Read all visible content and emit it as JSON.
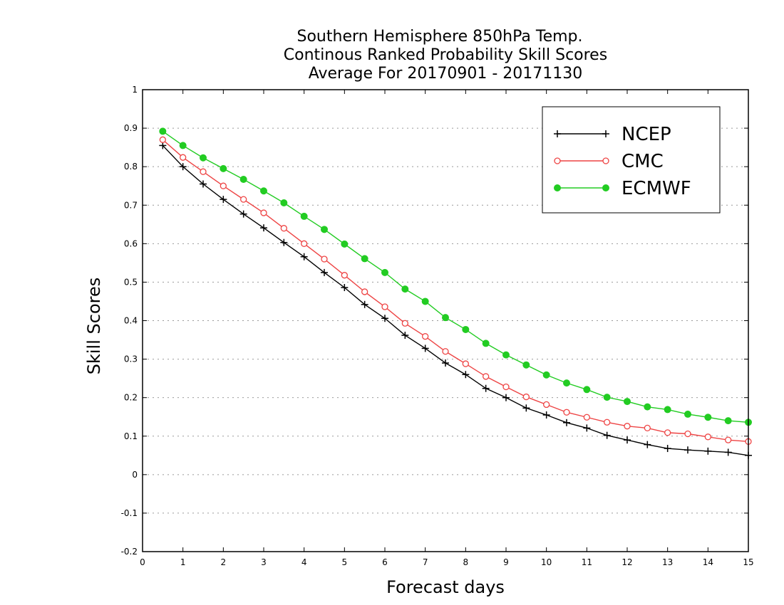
{
  "chart_data": {
    "type": "line",
    "title": "Southern Hemisphere 850hPa Temp.",
    "subtitle": "Continous Ranked Probability Skill Scores",
    "period": "Average For 20170901 - 20171130",
    "xlabel": "Forecast days",
    "ylabel": "Skill Scores",
    "xlim": [
      0,
      15
    ],
    "ylim": [
      -0.2,
      1
    ],
    "xticks": [
      0,
      1,
      2,
      3,
      4,
      5,
      6,
      7,
      8,
      9,
      10,
      11,
      12,
      13,
      14,
      15
    ],
    "yticks": [
      -0.2,
      -0.1,
      0,
      0.1,
      0.2,
      0.3,
      0.4,
      0.5,
      0.6,
      0.7,
      0.8,
      0.9,
      1
    ],
    "ytick_labels": [
      "-0.2",
      "-0.1",
      "0",
      "0.1",
      "0.2",
      "0.3",
      "0.4",
      "0.5",
      "0.6",
      "0.7",
      "0.8",
      "0.9",
      "1"
    ],
    "grid": "horizontal dotted",
    "legend_position": "top-right",
    "x": [
      0.5,
      1,
      1.5,
      2,
      2.5,
      3,
      3.5,
      4,
      4.5,
      5,
      5.5,
      6,
      6.5,
      7,
      7.5,
      8,
      8.5,
      9,
      9.5,
      10,
      10.5,
      11,
      11.5,
      12,
      12.5,
      13,
      13.5,
      14,
      14.5,
      15
    ],
    "series": [
      {
        "name": "NCEP",
        "color": "#000000",
        "marker": "plus",
        "values": [
          0.855,
          0.8,
          0.755,
          0.715,
          0.677,
          0.641,
          0.603,
          0.566,
          0.525,
          0.486,
          0.442,
          0.406,
          0.362,
          0.328,
          0.29,
          0.26,
          0.224,
          0.2,
          0.173,
          0.155,
          0.135,
          0.121,
          0.102,
          0.09,
          0.078,
          0.068,
          0.064,
          0.061,
          0.058,
          0.05
        ]
      },
      {
        "name": "CMC",
        "color": "#ee4444",
        "marker": "open-circle",
        "values": [
          0.87,
          0.824,
          0.787,
          0.75,
          0.715,
          0.68,
          0.64,
          0.6,
          0.56,
          0.518,
          0.475,
          0.436,
          0.393,
          0.359,
          0.32,
          0.288,
          0.255,
          0.228,
          0.202,
          0.182,
          0.162,
          0.149,
          0.136,
          0.126,
          0.121,
          0.109,
          0.106,
          0.098,
          0.09,
          0.086
        ]
      },
      {
        "name": "ECMWF",
        "color": "#22cc22",
        "marker": "filled-circle",
        "values": [
          0.892,
          0.855,
          0.823,
          0.795,
          0.767,
          0.737,
          0.706,
          0.671,
          0.637,
          0.599,
          0.561,
          0.525,
          0.482,
          0.45,
          0.408,
          0.377,
          0.341,
          0.311,
          0.285,
          0.259,
          0.238,
          0.221,
          0.201,
          0.19,
          0.176,
          0.169,
          0.157,
          0.149,
          0.14,
          0.136
        ]
      }
    ]
  }
}
